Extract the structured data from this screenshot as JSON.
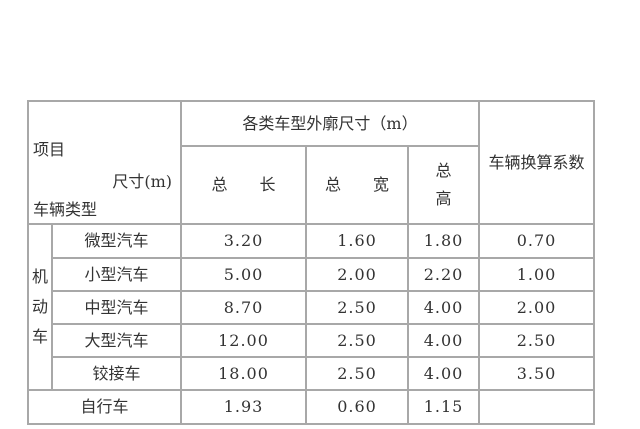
{
  "header": {
    "corner_top": "项目",
    "corner_mid": "尺寸(m)",
    "corner_bottom": "车辆类型",
    "dimensions_group": "各类车型外廓尺寸（m）",
    "length": "总　　长",
    "width": "总　　宽",
    "height_line1": "总",
    "height_line2": "高",
    "factor": "车辆换算系数"
  },
  "motor_group": [
    "机",
    "动",
    "车"
  ],
  "rows": [
    {
      "type": "微型汽车",
      "length": "3.20",
      "width": "1.60",
      "height": "1.80",
      "factor": "0.70"
    },
    {
      "type": "小型汽车",
      "length": "5.00",
      "width": "2.00",
      "height": "2.20",
      "factor": "1.00"
    },
    {
      "type": "中型汽车",
      "length": "8.70",
      "width": "2.50",
      "height": "4.00",
      "factor": "2.00"
    },
    {
      "type": "大型汽车",
      "length": "12.00",
      "width": "2.50",
      "height": "4.00",
      "factor": "2.50"
    },
    {
      "type": "铰接车",
      "length": "18.00",
      "width": "2.50",
      "height": "4.00",
      "factor": "3.50"
    }
  ],
  "bicycle": {
    "type": "自行车",
    "length": "1.93",
    "width": "0.60",
    "height": "1.15",
    "factor": ""
  }
}
